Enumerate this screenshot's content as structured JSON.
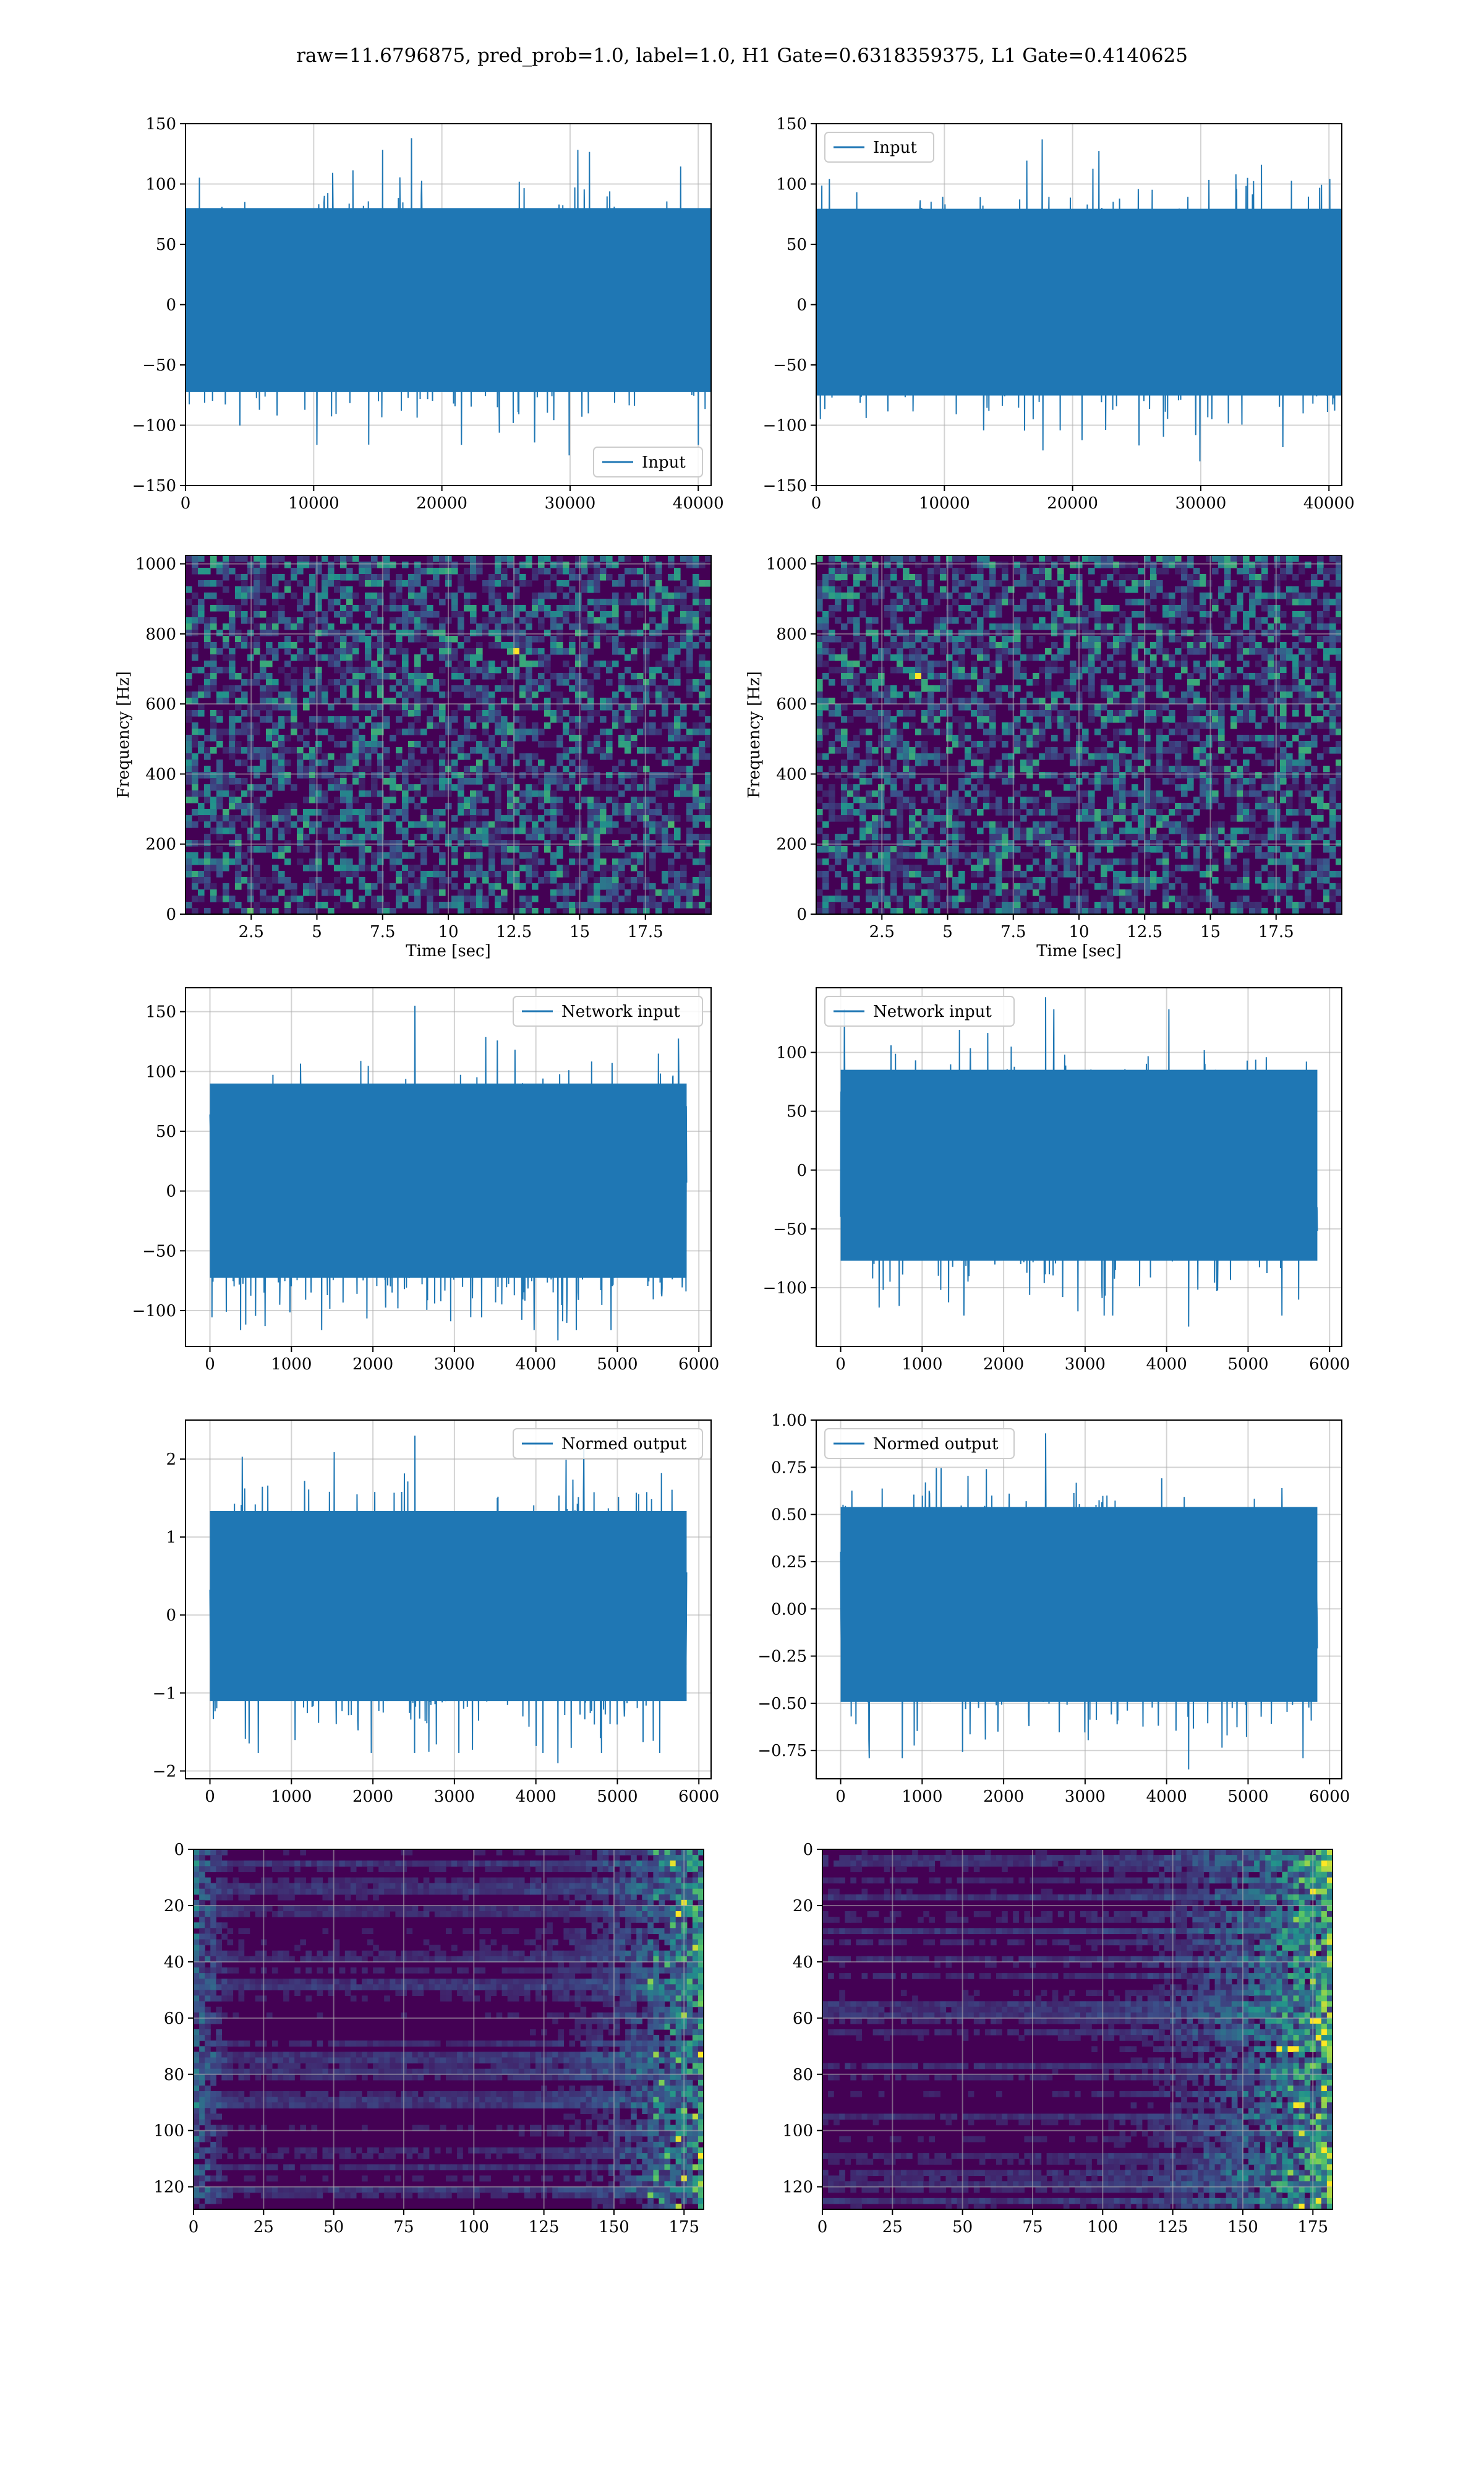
{
  "figure": {
    "title": "raw=11.6796875, pred_prob=1.0, label=1.0, H1 Gate=0.6318359375, L1 Gate=0.4140625"
  },
  "colors": {
    "series": "#1f77b4",
    "grid": "#b0b0b0",
    "viridis_low": "#440154",
    "viridis_mid": "#21918c",
    "viridis_high": "#fde725"
  },
  "chart_data": [
    {
      "id": "strain-left",
      "type": "line",
      "x": [
        0,
        41000
      ],
      "xlim": [
        0,
        41000
      ],
      "ylim": [
        -150,
        150
      ],
      "xticks": [
        0,
        10000,
        20000,
        30000,
        40000
      ],
      "yticks": [
        -150,
        -100,
        -50,
        0,
        50,
        100,
        150
      ],
      "series": [
        {
          "name": "Input",
          "values": [
            -125,
            138
          ]
        }
      ],
      "legend": "lower-right",
      "grid": true,
      "xlabel": "",
      "ylabel": ""
    },
    {
      "id": "strain-right",
      "type": "line",
      "x": [
        0,
        41000
      ],
      "xlim": [
        0,
        41000
      ],
      "ylim": [
        -150,
        150
      ],
      "xticks": [
        0,
        10000,
        20000,
        30000,
        40000
      ],
      "yticks": [
        -150,
        -100,
        -50,
        0,
        50,
        100,
        150
      ],
      "series": [
        {
          "name": "Input",
          "values": [
            -130,
            137
          ]
        }
      ],
      "legend": "upper-left",
      "grid": true,
      "xlabel": "",
      "ylabel": ""
    },
    {
      "id": "spectrogram-left",
      "type": "heatmap",
      "xlim": [
        0,
        20
      ],
      "ylim": [
        0,
        1024
      ],
      "xticks": [
        2.5,
        5.0,
        7.5,
        10.0,
        12.5,
        15.0,
        17.5
      ],
      "yticks": [
        0,
        200,
        400,
        600,
        800,
        1000
      ],
      "xlabel": "Time [sec]",
      "ylabel": "Frequency [Hz]",
      "grid": true,
      "colormap": "viridis"
    },
    {
      "id": "spectrogram-right",
      "type": "heatmap",
      "xlim": [
        0,
        20
      ],
      "ylim": [
        0,
        1024
      ],
      "xticks": [
        2.5,
        5.0,
        7.5,
        10.0,
        12.5,
        15.0,
        17.5
      ],
      "yticks": [
        0,
        200,
        400,
        600,
        800,
        1000
      ],
      "xlabel": "Time [sec]",
      "ylabel": "Frequency [Hz]",
      "grid": true,
      "colormap": "viridis"
    },
    {
      "id": "network-input-left",
      "type": "line",
      "x": [
        0,
        5850
      ],
      "xlim": [
        -300,
        6150
      ],
      "ylim": [
        -130,
        170
      ],
      "xticks": [
        0,
        1000,
        2000,
        3000,
        4000,
        5000,
        6000
      ],
      "yticks": [
        -100,
        -50,
        0,
        50,
        100,
        150
      ],
      "series": [
        {
          "name": "Network input",
          "values": [
            -125,
            155
          ]
        }
      ],
      "legend": "upper-right",
      "grid": true,
      "xlabel": "",
      "ylabel": ""
    },
    {
      "id": "network-input-right",
      "type": "line",
      "x": [
        0,
        5850
      ],
      "xlim": [
        -300,
        6150
      ],
      "ylim": [
        -150,
        155
      ],
      "xticks": [
        0,
        1000,
        2000,
        3000,
        4000,
        5000,
        6000
      ],
      "yticks": [
        -100,
        -50,
        0,
        50,
        100
      ],
      "series": [
        {
          "name": "Network input",
          "values": [
            -133,
            147
          ]
        }
      ],
      "legend": "upper-left",
      "grid": true,
      "xlabel": "",
      "ylabel": ""
    },
    {
      "id": "normed-output-left",
      "type": "line",
      "x": [
        0,
        5850
      ],
      "xlim": [
        -300,
        6150
      ],
      "ylim": [
        -2.1,
        2.5
      ],
      "xticks": [
        0,
        1000,
        2000,
        3000,
        4000,
        5000,
        6000
      ],
      "yticks": [
        -2,
        -1,
        0,
        1,
        2
      ],
      "series": [
        {
          "name": "Normed output",
          "values": [
            -1.9,
            2.3
          ]
        }
      ],
      "legend": "upper-right",
      "grid": true,
      "xlabel": "",
      "ylabel": ""
    },
    {
      "id": "normed-output-right",
      "type": "line",
      "x": [
        0,
        5850
      ],
      "xlim": [
        -300,
        6150
      ],
      "ylim": [
        -0.9,
        1.0
      ],
      "xticks": [
        0,
        1000,
        2000,
        3000,
        4000,
        5000,
        6000
      ],
      "yticks": [
        -0.75,
        -0.5,
        -0.25,
        0.0,
        0.25,
        0.5,
        0.75,
        1.0
      ],
      "ytick_labels": [
        "−0.75",
        "−0.50",
        "−0.25",
        "0.00",
        "0.25",
        "0.50",
        "0.75",
        "1.00"
      ],
      "series": [
        {
          "name": "Normed output",
          "values": [
            -0.85,
            0.93
          ]
        }
      ],
      "legend": "upper-left",
      "grid": true,
      "xlabel": "",
      "ylabel": ""
    },
    {
      "id": "feature-map-left",
      "type": "heatmap",
      "xlim": [
        0,
        182
      ],
      "ylim": [
        128,
        0
      ],
      "xticks": [
        0,
        25,
        50,
        75,
        100,
        125,
        150,
        175
      ],
      "yticks": [
        0,
        20,
        40,
        60,
        80,
        100,
        120
      ],
      "grid": true,
      "colormap": "viridis",
      "xlabel": "",
      "ylabel": ""
    },
    {
      "id": "feature-map-right",
      "type": "heatmap",
      "xlim": [
        0,
        182
      ],
      "ylim": [
        128,
        0
      ],
      "xticks": [
        0,
        25,
        50,
        75,
        100,
        125,
        150,
        175
      ],
      "yticks": [
        0,
        20,
        40,
        60,
        80,
        100,
        120
      ],
      "grid": true,
      "colormap": "viridis",
      "xlabel": "",
      "ylabel": ""
    }
  ]
}
